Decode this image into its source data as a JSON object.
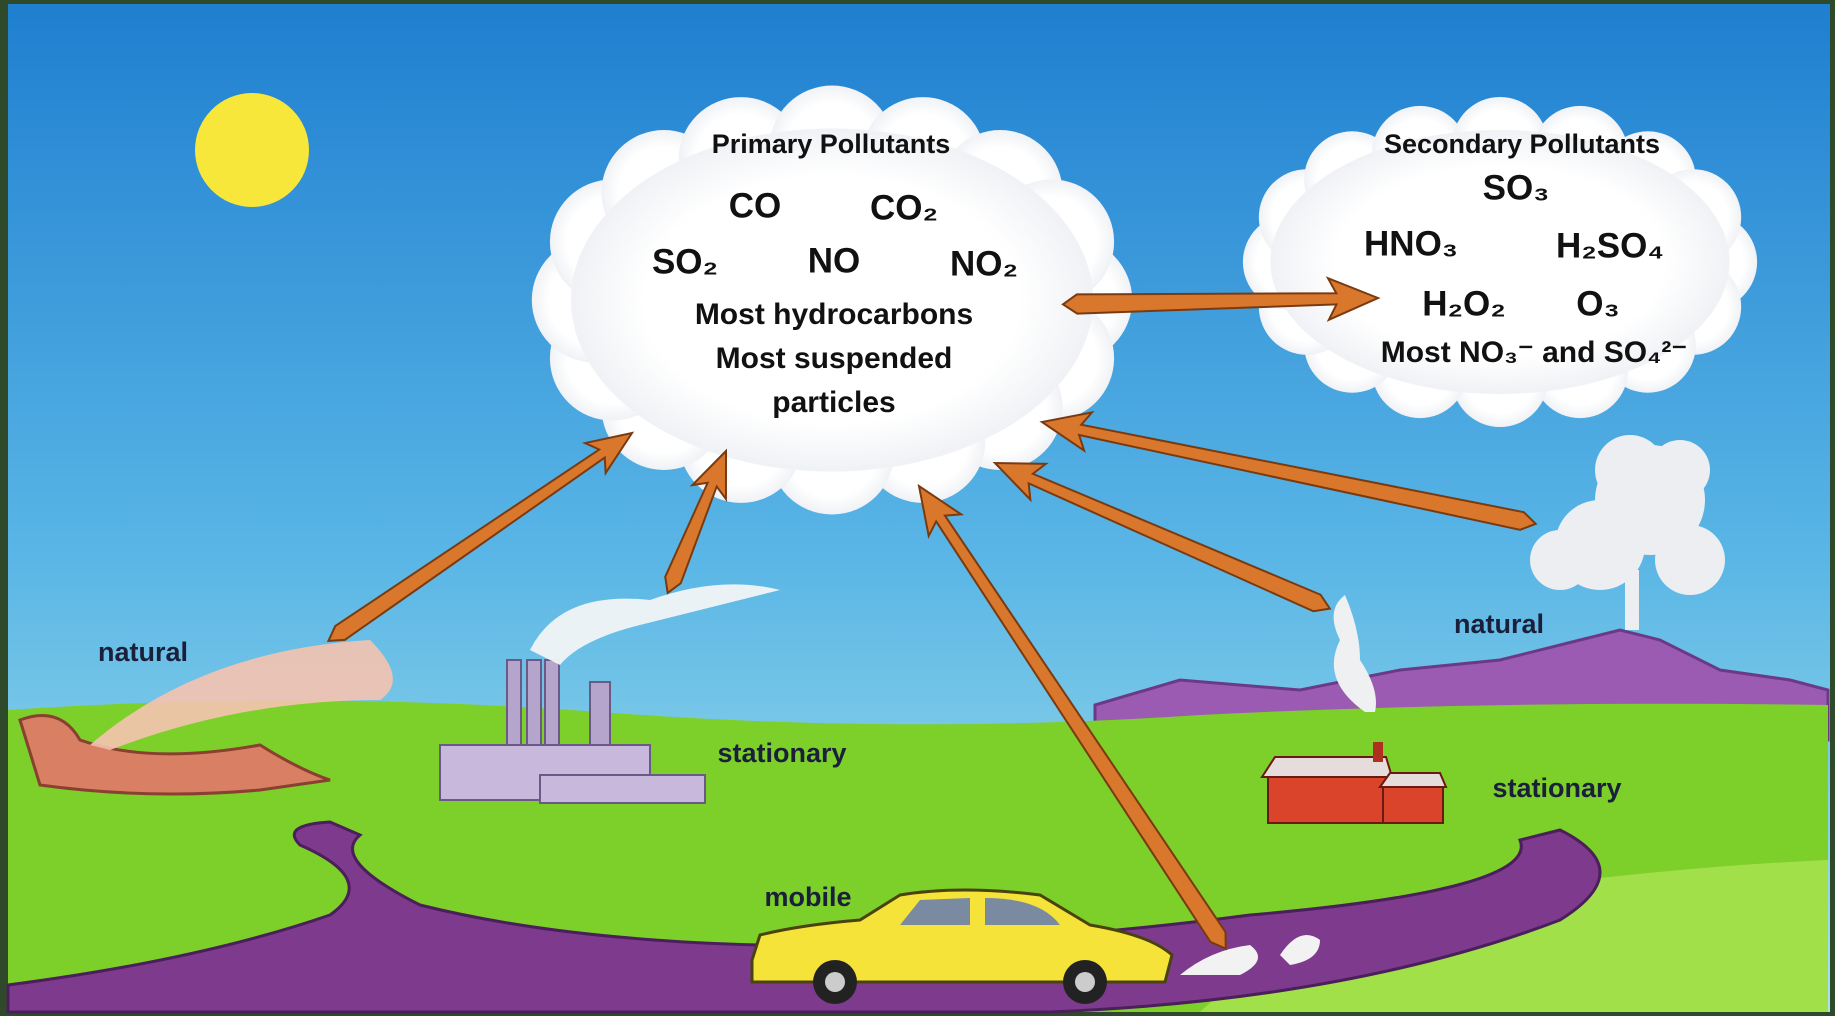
{
  "primary_cloud": {
    "title": "Primary Pollutants",
    "items": [
      "CO",
      "CO₂",
      "SO₂",
      "NO",
      "NO₂"
    ],
    "lines": [
      "Most hydrocarbons",
      "Most suspended",
      "particles"
    ]
  },
  "secondary_cloud": {
    "title": "Secondary Pollutants",
    "items": [
      "SO₃",
      "HNO₃",
      "H₂SO₄",
      "H₂O₂",
      "O₃"
    ],
    "lines": [
      "Most NO₃⁻ and SO₄²⁻"
    ]
  },
  "labels": {
    "natural_fire": "natural",
    "stationary_factory": "stationary",
    "natural_volcano": "natural",
    "stationary_house": "stationary",
    "mobile_car": "mobile"
  }
}
